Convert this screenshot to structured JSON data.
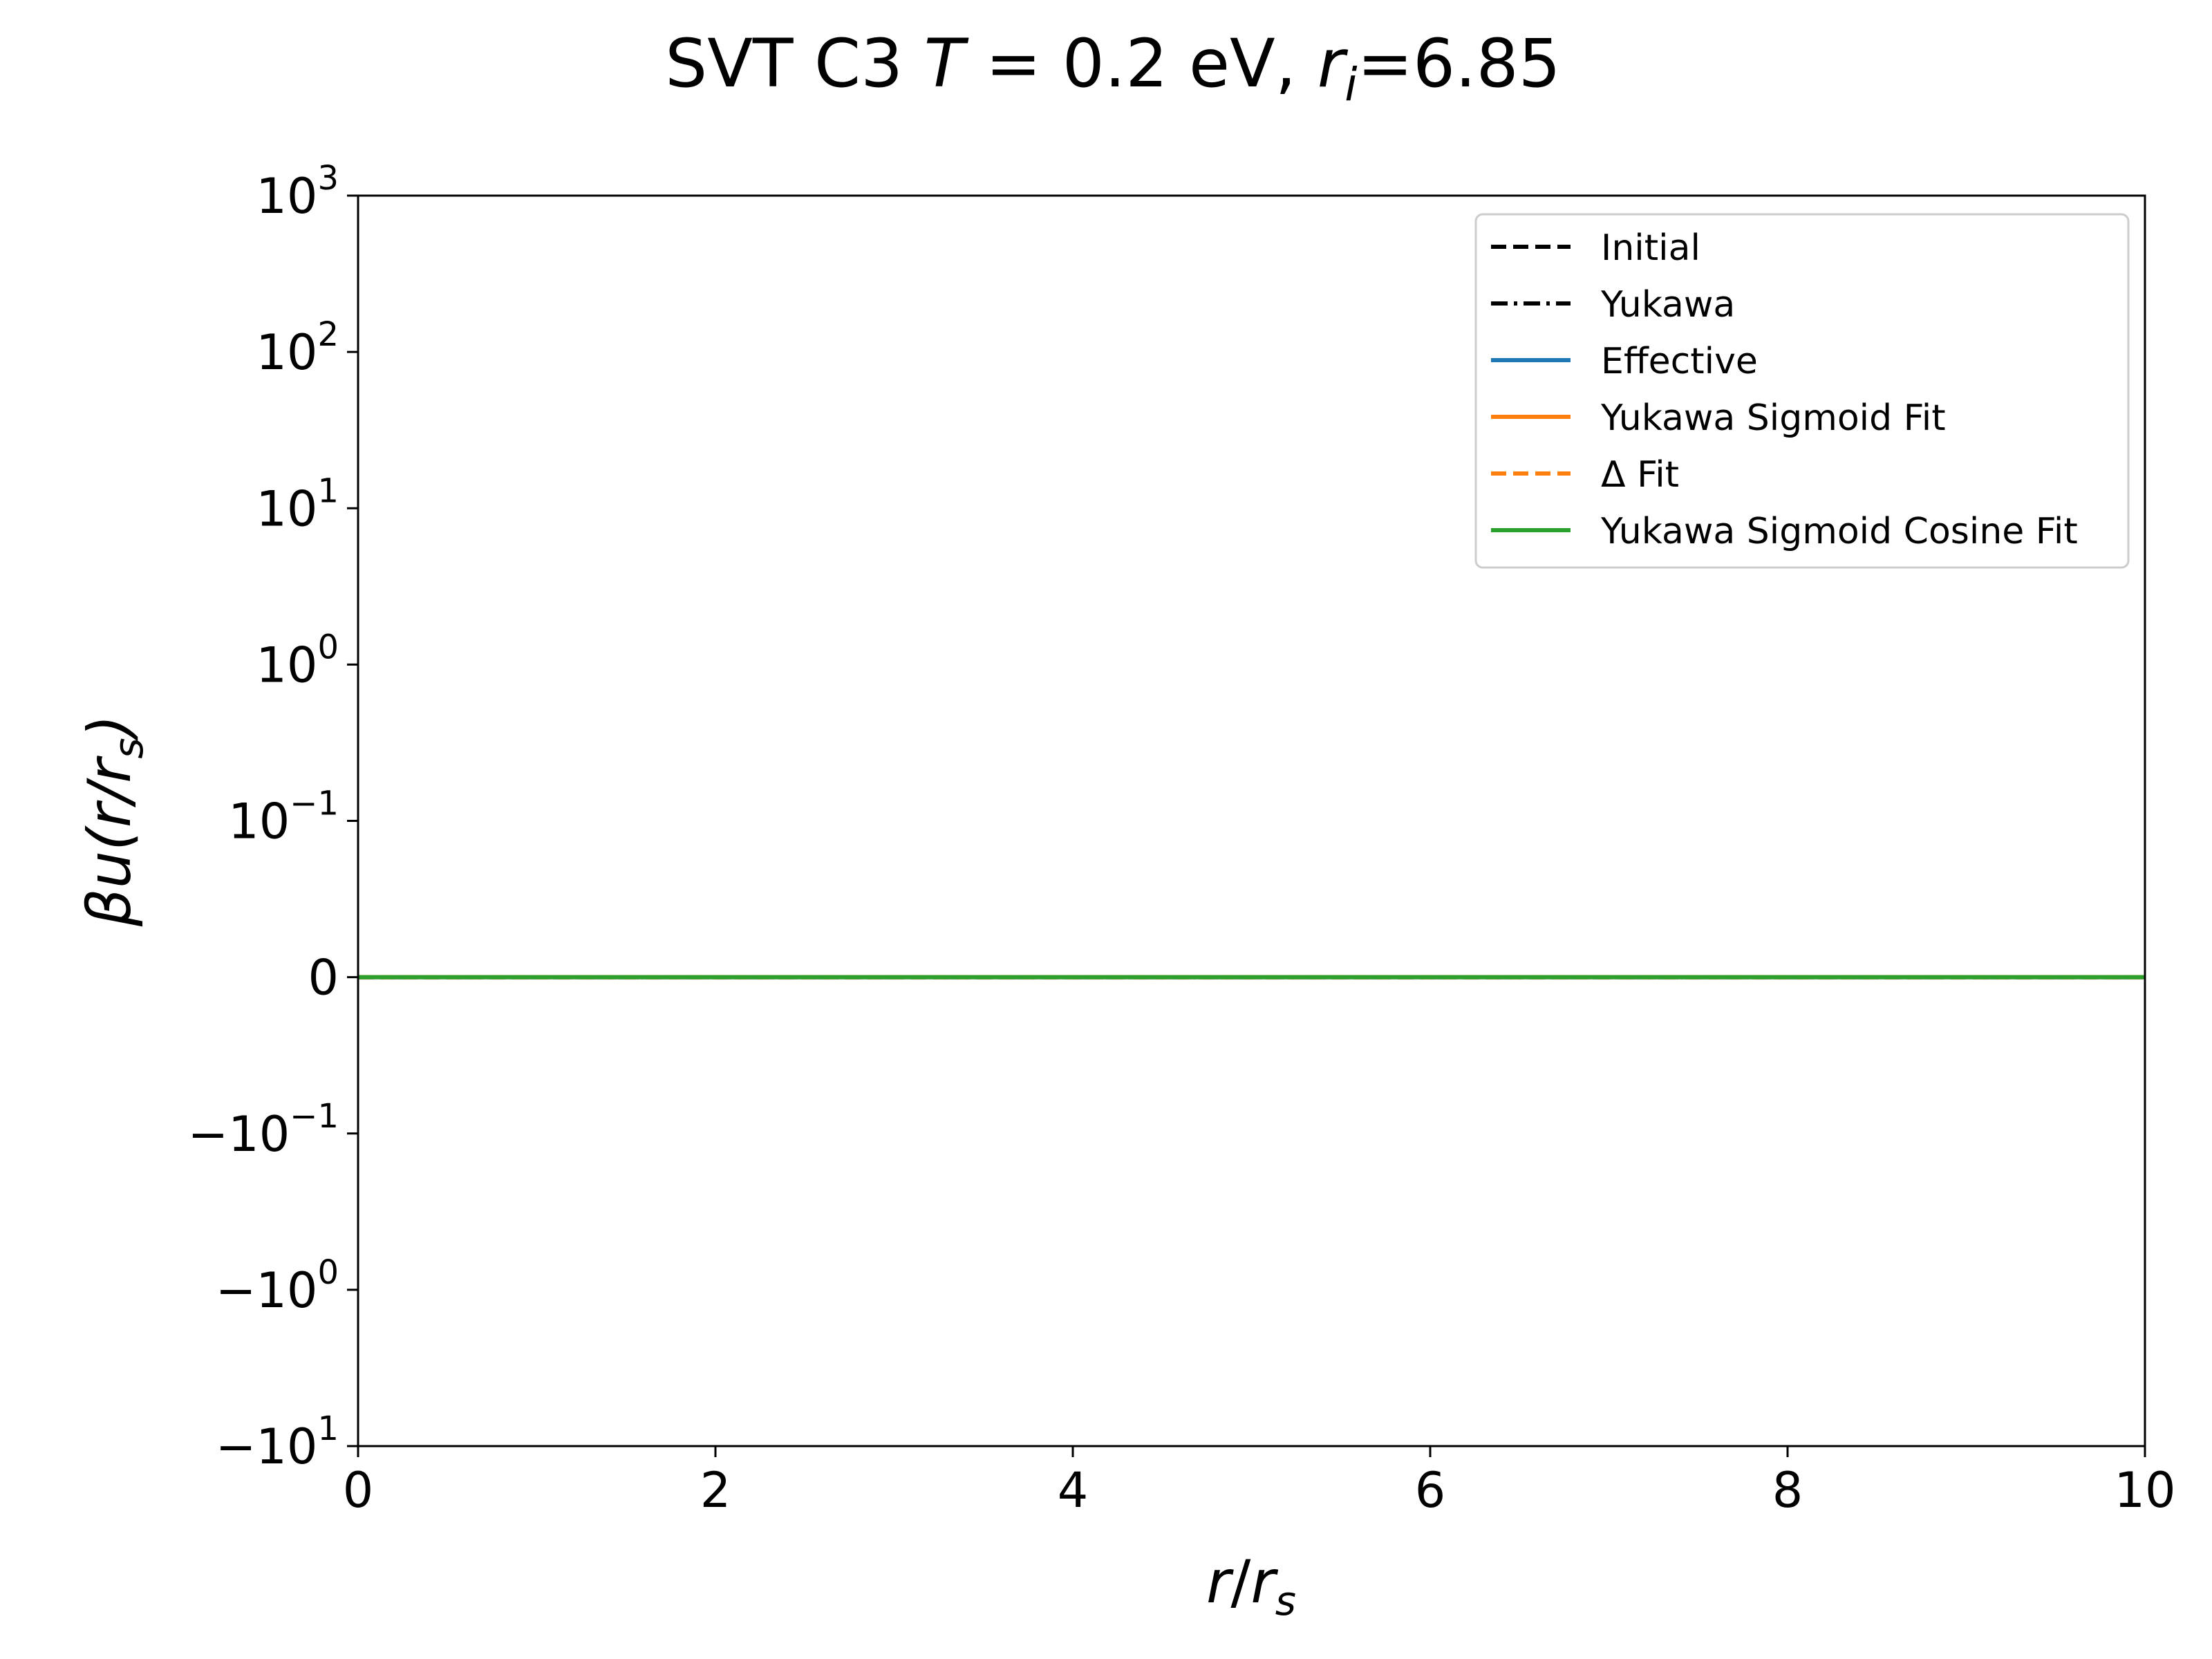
{
  "chart_data": {
    "type": "line",
    "title_parts": [
      "SVT C3 ",
      "T",
      " = 0.2 eV, ",
      "r",
      "i",
      "=6.85"
    ],
    "xlabel_parts": [
      "r",
      "/",
      "r",
      "s"
    ],
    "ylabel_parts": [
      "βu(r/r",
      "s",
      ")"
    ],
    "xlim": [
      0,
      10
    ],
    "y_scale": "symlog",
    "y_linthresh": 0.1,
    "ylim": [
      -10,
      1000
    ],
    "x_ticks": [
      {
        "value": 0,
        "label": "0"
      },
      {
        "value": 2,
        "label": "2"
      },
      {
        "value": 4,
        "label": "4"
      },
      {
        "value": 6,
        "label": "6"
      },
      {
        "value": 8,
        "label": "8"
      },
      {
        "value": 10,
        "label": "10"
      }
    ],
    "y_ticks": [
      {
        "value": 1000,
        "base": "10",
        "exp": "3"
      },
      {
        "value": 100,
        "base": "10",
        "exp": "2"
      },
      {
        "value": 10,
        "base": "10",
        "exp": "1"
      },
      {
        "value": 1,
        "base": "10",
        "exp": "0"
      },
      {
        "value": 0.1,
        "base": "10",
        "exp": "−1"
      },
      {
        "value": 0,
        "base": "0",
        "exp": ""
      },
      {
        "value": -0.1,
        "base": "−10",
        "exp": "−1"
      },
      {
        "value": -1,
        "base": "−10",
        "exp": "0"
      },
      {
        "value": -10,
        "base": "−10",
        "exp": "1"
      }
    ],
    "grid": false,
    "legend_position": "top-right",
    "series": [
      {
        "name": "Initial",
        "color": "#000000",
        "dash": "dashed",
        "x": [
          0,
          10
        ],
        "y": [
          0,
          0
        ]
      },
      {
        "name": "Yukawa",
        "color": "#000000",
        "dash": "dashdot",
        "x": [
          0,
          10
        ],
        "y": [
          0,
          0
        ]
      },
      {
        "name": "Effective",
        "color": "#1f77b4",
        "dash": "solid",
        "x": [
          0,
          10
        ],
        "y": [
          0,
          0
        ]
      },
      {
        "name": "Yukawa Sigmoid Fit",
        "color": "#ff7f0e",
        "dash": "solid",
        "x": [
          0,
          10
        ],
        "y": [
          0,
          0
        ]
      },
      {
        "name": "Δ Fit",
        "color": "#ff7f0e",
        "dash": "dashed",
        "x": [
          0,
          10
        ],
        "y": [
          0,
          0
        ]
      },
      {
        "name": "Yukawa Sigmoid Cosine Fit",
        "color": "#2ca02c",
        "dash": "solid",
        "x": [
          0,
          10
        ],
        "y": [
          0,
          0
        ]
      }
    ]
  }
}
